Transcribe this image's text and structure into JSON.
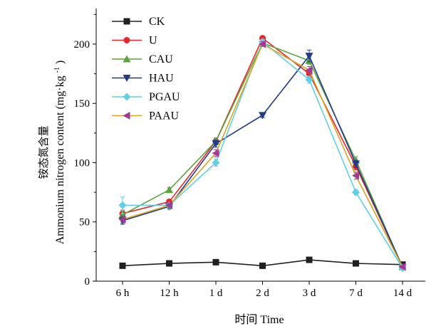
{
  "chart_data": {
    "type": "line",
    "categories": [
      "6 h",
      "12 h",
      "1 d",
      "2 d",
      "3 d",
      "7 d",
      "14 d"
    ],
    "xlabel": "时间 Time",
    "ylabel_cn": "铵态氮含量",
    "ylabel_en": "Ammonium nitrogen content",
    "ylabel_unit": "(mg·kg",
    "ylabel_unit_sup": "-1",
    "ylabel_unit_close": ")",
    "ylim": [
      0,
      230
    ],
    "yticks": [
      0,
      50,
      100,
      150,
      200
    ],
    "grid": false,
    "legend_position": "top-left",
    "series": [
      {
        "name": "CK",
        "color": "#231f20",
        "marker": "square",
        "values": [
          13,
          15,
          16,
          13,
          18,
          15,
          14
        ],
        "errors": [
          1,
          1,
          1,
          1,
          1,
          1,
          1
        ]
      },
      {
        "name": "U",
        "color": "#e8252a",
        "marker": "circle",
        "values": [
          57,
          67,
          118,
          205,
          175,
          97,
          12
        ],
        "errors": [
          3,
          2,
          3,
          2,
          3,
          3,
          1
        ]
      },
      {
        "name": "CAU",
        "color": "#5aa33f",
        "marker": "triangle-up",
        "values": [
          56,
          77,
          118,
          201,
          186,
          102,
          12
        ],
        "errors": [
          3,
          2,
          3,
          2,
          3,
          3,
          1
        ]
      },
      {
        "name": "HAU",
        "color": "#233b8c",
        "marker": "triangle-down",
        "values": [
          51,
          63,
          116,
          140,
          190,
          99,
          12
        ],
        "errors": [
          3,
          2,
          3,
          2,
          5,
          3,
          1
        ]
      },
      {
        "name": "PGAU",
        "color": "#5fd0e6",
        "marker": "diamond",
        "values": [
          64,
          64,
          100,
          202,
          170,
          75,
          11
        ],
        "errors": [
          7,
          2,
          3,
          2,
          3,
          2,
          1
        ]
      },
      {
        "name": "PAAU",
        "color": "#a03a96",
        "marker": "triangle-left",
        "values": [
          52,
          64,
          108,
          200,
          178,
          89,
          12
        ],
        "errors": [
          3,
          2,
          3,
          2,
          3,
          3,
          1
        ]
      }
    ],
    "paau_line_color": "#d9a520"
  }
}
